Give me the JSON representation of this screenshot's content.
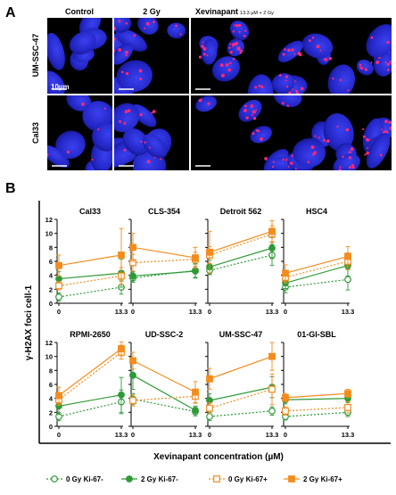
{
  "panel_a": {
    "letter": "A",
    "col_headers": [
      "Control",
      "2 Gy",
      "Xevinapant"
    ],
    "col_header_suffix": "13.3 µM + 2 Gy",
    "row_labels": [
      "UM-SSC-47",
      "Cal33"
    ],
    "scale_label": "10µm"
  },
  "panel_b": {
    "letter": "B",
    "ylabel": "γ-H2AX foci cell-1",
    "xlabel": "Xevinapant concentration (µM)"
  },
  "colors": {
    "nucleus": "#2b2fd6",
    "foci": "#ff2a7a",
    "green": "#2e9a37",
    "orange": "#f28c1e"
  },
  "chart_data": [
    {
      "type": "line",
      "title": "Cal33",
      "categories": [
        "0",
        "13.3"
      ],
      "ylim": [
        0,
        12
      ],
      "yticks": [
        "0",
        "2",
        "4",
        "6",
        "8",
        "10",
        "12"
      ],
      "series": [
        {
          "name": "0 Gy Ki-67-",
          "values": [
            0.9,
            2.3
          ],
          "err": [
            0.6,
            1.0
          ]
        },
        {
          "name": "2 Gy Ki-67-",
          "values": [
            3.5,
            4.3
          ],
          "err": [
            1.0,
            2.0
          ]
        },
        {
          "name": "0 Gy Ki-67+",
          "values": [
            2.5,
            3.9
          ],
          "err": [
            0.6,
            1.2
          ]
        },
        {
          "name": "2 Gy Ki-67+",
          "values": [
            5.4,
            6.9
          ],
          "err": [
            1.5,
            3.8
          ]
        }
      ]
    },
    {
      "type": "line",
      "title": "CLS-354",
      "categories": [
        "0",
        "13.3"
      ],
      "ylim": [
        0,
        12
      ],
      "yticks": [
        "0",
        "2",
        "4",
        "6",
        "8",
        "10",
        "12"
      ],
      "series": [
        {
          "name": "0 Gy Ki-67-",
          "values": [
            3.6,
            4.7
          ],
          "err": [
            0.6,
            1.0
          ]
        },
        {
          "name": "2 Gy Ki-67-",
          "values": [
            3.9,
            4.6
          ],
          "err": [
            0.6,
            1.0
          ]
        },
        {
          "name": "0 Gy Ki-67+",
          "values": [
            5.8,
            6.3
          ],
          "err": [
            1.2,
            1.0
          ]
        },
        {
          "name": "2 Gy Ki-67+",
          "values": [
            8.0,
            6.5
          ],
          "err": [
            2.0,
            1.5
          ]
        }
      ]
    },
    {
      "type": "line",
      "title": "Detroit 562",
      "categories": [
        "0",
        "13.3"
      ],
      "ylim": [
        0,
        12
      ],
      "yticks": [
        "0",
        "2",
        "4",
        "6",
        "8",
        "10",
        "12"
      ],
      "series": [
        {
          "name": "0 Gy Ki-67-",
          "values": [
            4.7,
            6.9
          ],
          "err": [
            0.6,
            1.5
          ]
        },
        {
          "name": "2 Gy Ki-67-",
          "values": [
            5.2,
            7.9
          ],
          "err": [
            1.0,
            1.5
          ]
        },
        {
          "name": "0 Gy Ki-67+",
          "values": [
            6.9,
            9.9
          ],
          "err": [
            1.2,
            1.2
          ]
        },
        {
          "name": "2 Gy Ki-67+",
          "values": [
            7.3,
            10.3
          ],
          "err": [
            3.0,
            1.5
          ]
        }
      ]
    },
    {
      "type": "line",
      "title": "HSC4",
      "categories": [
        "0",
        "13.3"
      ],
      "ylim": [
        0,
        12
      ],
      "yticks": [
        "0",
        "2",
        "4",
        "6",
        "8",
        "10",
        "12"
      ],
      "series": [
        {
          "name": "0 Gy Ki-67-",
          "values": [
            2.3,
            3.4
          ],
          "err": [
            0.8,
            1.5
          ]
        },
        {
          "name": "2 Gy Ki-67-",
          "values": [
            2.9,
            5.4
          ],
          "err": [
            0.8,
            1.5
          ]
        },
        {
          "name": "0 Gy Ki-67+",
          "values": [
            3.7,
            6.0
          ],
          "err": [
            0.8,
            1.2
          ]
        },
        {
          "name": "2 Gy Ki-67+",
          "values": [
            4.3,
            6.7
          ],
          "err": [
            1.2,
            1.4
          ]
        }
      ]
    },
    {
      "type": "line",
      "title": "RPMI-2650",
      "categories": [
        "0",
        "13.3"
      ],
      "ylim": [
        0,
        12
      ],
      "yticks": [
        "0",
        "2",
        "4",
        "6",
        "8",
        "10",
        "12"
      ],
      "series": [
        {
          "name": "0 Gy Ki-67-",
          "values": [
            1.4,
            3.5
          ],
          "err": [
            0.6,
            1.7
          ]
        },
        {
          "name": "2 Gy Ki-67-",
          "values": [
            2.9,
            4.5
          ],
          "err": [
            1.2,
            2.5
          ]
        },
        {
          "name": "0 Gy Ki-67+",
          "values": [
            3.8,
            10.6
          ],
          "err": [
            0.8,
            1.0
          ]
        },
        {
          "name": "2 Gy Ki-67+",
          "values": [
            4.4,
            11.1
          ],
          "err": [
            1.2,
            1.0
          ]
        }
      ]
    },
    {
      "type": "line",
      "title": "UD-SSC-2",
      "categories": [
        "0",
        "13.3"
      ],
      "ylim": [
        0,
        12
      ],
      "yticks": [
        "0",
        "2",
        "4",
        "6",
        "8",
        "10",
        "12"
      ],
      "series": [
        {
          "name": "0 Gy Ki-67-",
          "values": [
            3.9,
            2.1
          ],
          "err": [
            0.8,
            0.6
          ]
        },
        {
          "name": "2 Gy Ki-67-",
          "values": [
            7.3,
            2.3
          ],
          "err": [
            2.0,
            0.6
          ]
        },
        {
          "name": "0 Gy Ki-67+",
          "values": [
            3.7,
            4.3
          ],
          "err": [
            0.8,
            1.0
          ]
        },
        {
          "name": "2 Gy Ki-67+",
          "values": [
            9.4,
            4.9
          ],
          "err": [
            1.2,
            1.5
          ]
        }
      ]
    },
    {
      "type": "line",
      "title": "UM-SSC-47",
      "categories": [
        "0",
        "13.3"
      ],
      "ylim": [
        0,
        12
      ],
      "yticks": [
        "0",
        "2",
        "4",
        "6",
        "8",
        "10",
        "12"
      ],
      "series": [
        {
          "name": "0 Gy Ki-67-",
          "values": [
            1.4,
            2.2
          ],
          "err": [
            0.6,
            0.6
          ]
        },
        {
          "name": "2 Gy Ki-67-",
          "values": [
            3.7,
            5.6
          ],
          "err": [
            1.0,
            1.5
          ]
        },
        {
          "name": "0 Gy Ki-67+",
          "values": [
            2.6,
            5.3
          ],
          "err": [
            0.8,
            2.2
          ]
        },
        {
          "name": "2 Gy Ki-67+",
          "values": [
            6.8,
            10.0
          ],
          "err": [
            1.5,
            2.0
          ]
        }
      ]
    },
    {
      "type": "line",
      "title": "01-GI-SBL",
      "categories": [
        "0",
        "13.3"
      ],
      "ylim": [
        0,
        12
      ],
      "yticks": [
        "0",
        "2",
        "4",
        "6",
        "8",
        "10",
        "12"
      ],
      "series": [
        {
          "name": "0 Gy Ki-67-",
          "values": [
            1.4,
            2.0
          ],
          "err": [
            0.5,
            0.6
          ]
        },
        {
          "name": "2 Gy Ki-67-",
          "values": [
            3.8,
            4.0
          ],
          "err": [
            0.6,
            0.6
          ]
        },
        {
          "name": "0 Gy Ki-67+",
          "values": [
            2.2,
            2.7
          ],
          "err": [
            0.6,
            0.8
          ]
        },
        {
          "name": "2 Gy Ki-67+",
          "values": [
            4.1,
            4.7
          ],
          "err": [
            0.6,
            0.6
          ]
        }
      ]
    }
  ],
  "legend": [
    {
      "label": "0 Gy Ki-67-"
    },
    {
      "label": "2 Gy Ki-67-"
    },
    {
      "label": "0 Gy Ki-67+"
    },
    {
      "label": "2 Gy Ki-67+"
    }
  ]
}
